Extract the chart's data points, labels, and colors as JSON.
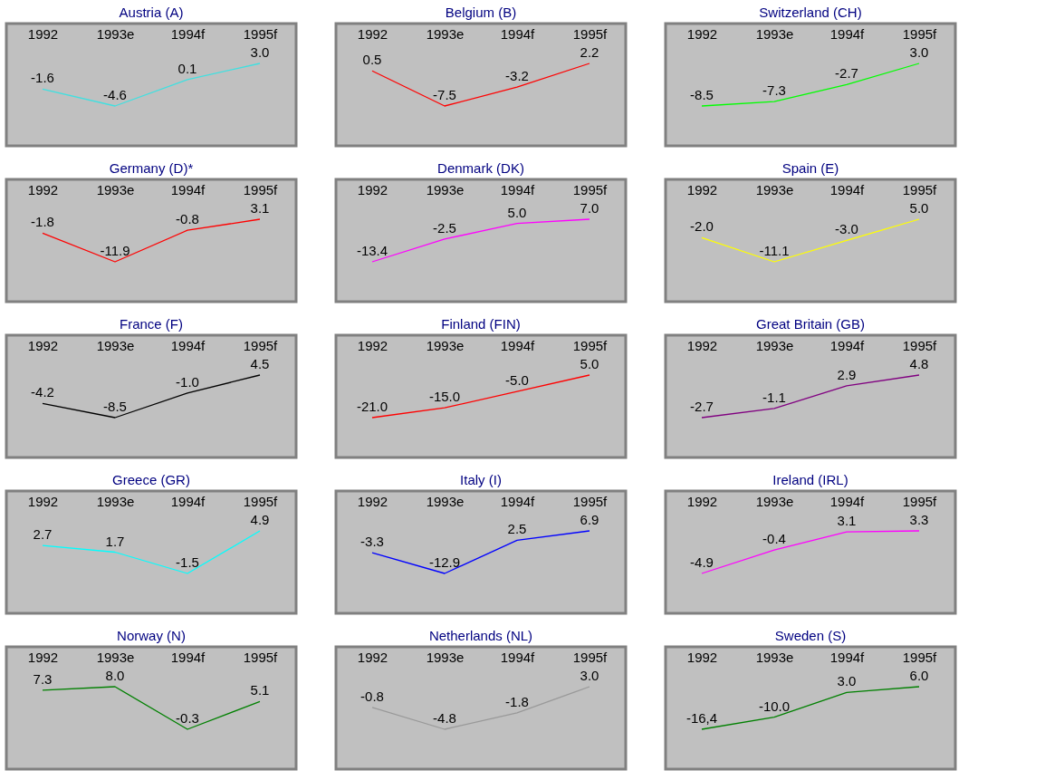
{
  "chart_data": [
    {
      "type": "line",
      "title": "Austria (A)",
      "categories": [
        "1992",
        "1993e",
        "1994f",
        "1995f"
      ],
      "series": [
        {
          "color": "#40e0e0",
          "values": [
            -1.6,
            -4.6,
            0.1,
            3.0
          ],
          "value_labels": [
            "-1.6",
            "-4.6",
            "0.1",
            "3.0"
          ]
        }
      ],
      "tick_labels": "x"
    },
    {
      "type": "line",
      "title": "Belgium (B)",
      "categories": [
        "1992",
        "1993e",
        "1994f",
        "1995f"
      ],
      "series": [
        {
          "color": "#ff0000",
          "values": [
            0.5,
            -7.5,
            -3.2,
            2.2
          ],
          "value_labels": [
            "0.5",
            "-7.5",
            "-3.2",
            "2.2"
          ]
        }
      ],
      "tick_labels": "x"
    },
    {
      "type": "line",
      "title": "Switzerland (CH)",
      "categories": [
        "1992",
        "1993e",
        "1994f",
        "1995f"
      ],
      "series": [
        {
          "color": "#00ff00",
          "values": [
            -8.5,
            -7.3,
            -2.7,
            3.0
          ],
          "value_labels": [
            "-8.5",
            "-7.3",
            "-2.7",
            "3.0"
          ]
        }
      ],
      "tick_labels": "x"
    },
    {
      "type": "line",
      "title": "Germany (D)*",
      "categories": [
        "1992",
        "1993e",
        "1994f",
        "1995f"
      ],
      "series": [
        {
          "color": "#ff0000",
          "values": [
            -1.8,
            -11.9,
            -0.8,
            3.1
          ],
          "value_labels": [
            "-1.8",
            "-11.9",
            "-0.8",
            "3.1"
          ]
        }
      ],
      "tick_labels": "x"
    },
    {
      "type": "line",
      "title": "Denmark (DK)",
      "categories": [
        "1992",
        "1993e",
        "1994f",
        "1995f"
      ],
      "series": [
        {
          "color": "#ff00ff",
          "values": [
            -13.4,
            -2.5,
            5.0,
            7.0
          ],
          "value_labels": [
            "-13.4",
            "-2.5",
            "5.0",
            "7.0"
          ]
        }
      ],
      "tick_labels": "x"
    },
    {
      "type": "line",
      "title": "Spain (E)",
      "categories": [
        "1992",
        "1993e",
        "1994f",
        "1995f"
      ],
      "series": [
        {
          "color": "#ffff00",
          "values": [
            -2.0,
            -11.1,
            -3.0,
            5.0
          ],
          "value_labels": [
            "-2.0",
            "-11.1",
            "-3.0",
            "5.0"
          ]
        }
      ],
      "tick_labels": "x"
    },
    {
      "type": "line",
      "title": "France (F)",
      "categories": [
        "1992",
        "1993e",
        "1994f",
        "1995f"
      ],
      "series": [
        {
          "color": "#000000",
          "values": [
            -4.2,
            -8.5,
            -1.0,
            4.5
          ],
          "value_labels": [
            "-4.2",
            "-8.5",
            "-1.0",
            "4.5"
          ]
        }
      ],
      "tick_labels": "x"
    },
    {
      "type": "line",
      "title": "Finland (FIN)",
      "categories": [
        "1992",
        "1993e",
        "1994f",
        "1995f"
      ],
      "series": [
        {
          "color": "#ff0000",
          "values": [
            -21.0,
            -15.0,
            -5.0,
            5.0
          ],
          "value_labels": [
            "-21.0",
            "-15.0",
            "-5.0",
            "5.0"
          ]
        }
      ],
      "tick_labels": "x"
    },
    {
      "type": "line",
      "title": "Great Britain (GB)",
      "categories": [
        "1992",
        "1993e",
        "1994f",
        "1995f"
      ],
      "series": [
        {
          "color": "#800080",
          "values": [
            -2.7,
            -1.1,
            2.9,
            4.8
          ],
          "value_labels": [
            "-2.7",
            "-1.1",
            "2.9",
            "4.8"
          ]
        }
      ],
      "tick_labels": "x"
    },
    {
      "type": "line",
      "title": "Greece (GR)",
      "categories": [
        "1992",
        "1993e",
        "1994f",
        "1995f"
      ],
      "series": [
        {
          "color": "#00ffff",
          "values": [
            2.7,
            1.7,
            -1.5,
            4.9
          ],
          "value_labels": [
            "2.7",
            "1.7",
            "-1.5",
            "4.9"
          ]
        }
      ],
      "tick_labels": "x"
    },
    {
      "type": "line",
      "title": "Italy (I)",
      "categories": [
        "1992",
        "1993e",
        "1994f",
        "1995f"
      ],
      "series": [
        {
          "color": "#0000ff",
          "values": [
            -3.3,
            -12.9,
            2.5,
            6.9
          ],
          "value_labels": [
            "-3.3",
            "-12.9",
            "2.5",
            "6.9"
          ]
        }
      ],
      "tick_labels": "x"
    },
    {
      "type": "line",
      "title": "Ireland (IRL)",
      "categories": [
        "1992",
        "1993e",
        "1994f",
        "1995f"
      ],
      "series": [
        {
          "color": "#ff00ff",
          "values": [
            -4.9,
            -0.4,
            3.1,
            3.3
          ],
          "value_labels": [
            "-4.9",
            "-0.4",
            "3.1",
            "3.3"
          ]
        }
      ],
      "tick_labels": "x"
    },
    {
      "type": "line",
      "title": "Norway (N)",
      "categories": [
        "1992",
        "1993e",
        "1994f",
        "1995f"
      ],
      "series": [
        {
          "color": "#008000",
          "values": [
            7.3,
            8.0,
            -0.3,
            5.1
          ],
          "value_labels": [
            "7.3",
            "8.0",
            "-0.3",
            "5.1"
          ]
        }
      ],
      "tick_labels": "x"
    },
    {
      "type": "line",
      "title": "Netherlands (NL)",
      "categories": [
        "1992",
        "1993e",
        "1994f",
        "1995f"
      ],
      "series": [
        {
          "color": "#999999",
          "values": [
            -0.8,
            -4.8,
            -1.8,
            3.0
          ],
          "value_labels": [
            "-0.8",
            "-4.8",
            "-1.8",
            "3.0"
          ]
        }
      ],
      "tick_labels": "x"
    },
    {
      "type": "line",
      "title": "Sweden (S)",
      "categories": [
        "1992",
        "1993e",
        "1994f",
        "1995f"
      ],
      "series": [
        {
          "color": "#008000",
          "values": [
            -16.4,
            -10.0,
            3.0,
            6.0
          ],
          "value_labels": [
            "-16,4",
            "-10.0",
            "3.0",
            "6.0"
          ]
        }
      ],
      "tick_labels": "x"
    }
  ]
}
